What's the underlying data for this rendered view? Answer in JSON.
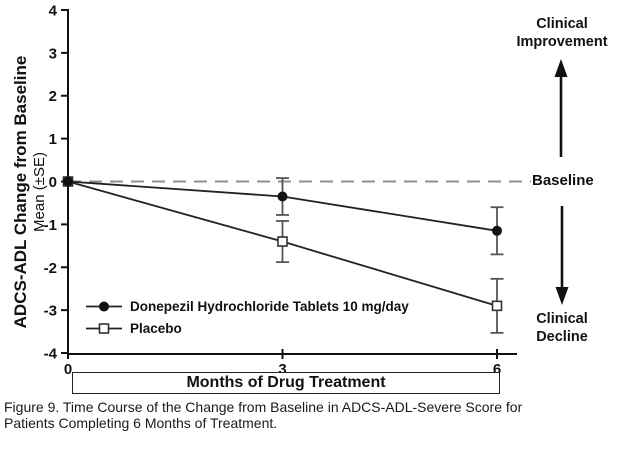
{
  "chart_data": {
    "type": "line",
    "x": [
      0,
      3,
      6
    ],
    "xticks": [
      0,
      3,
      6
    ],
    "xlabel": "Months of Drug Treatment",
    "ylabel_line1": "ADCS-ADL Change from Baseline",
    "ylabel_line2": "Mean (±SE)",
    "ylim": [
      -4,
      4
    ],
    "yticks": [
      4,
      3,
      2,
      1,
      0,
      -1,
      -2,
      -3,
      -4
    ],
    "grid": false,
    "baseline_y": 0,
    "legend_position": "lower-left-inside",
    "series": [
      {
        "name": "Donepezil Hydrochloride Tablets 10 mg/day",
        "marker": "filled-circle",
        "values": [
          0,
          -0.35,
          -1.15
        ],
        "se": [
          0,
          0.43,
          0.55
        ]
      },
      {
        "name": "Placebo",
        "marker": "open-square",
        "values": [
          0,
          -1.4,
          -2.9
        ],
        "se": [
          0,
          0.48,
          0.63
        ]
      }
    ],
    "annotations": {
      "improvement": "Clinical Improvement",
      "baseline": "Baseline",
      "decline": "Clinical Decline"
    },
    "colors": {
      "axis": "#111111",
      "series_line": "#222222",
      "error_bar": "#555555",
      "baseline_dash": "#8f8f8f",
      "background": "#ffffff"
    }
  },
  "caption": {
    "line1": "Figure 9. Time Course of the Change from Baseline in ADCS-ADL-Severe Score for",
    "line2": "Patients Completing 6 Months of Treatment."
  }
}
